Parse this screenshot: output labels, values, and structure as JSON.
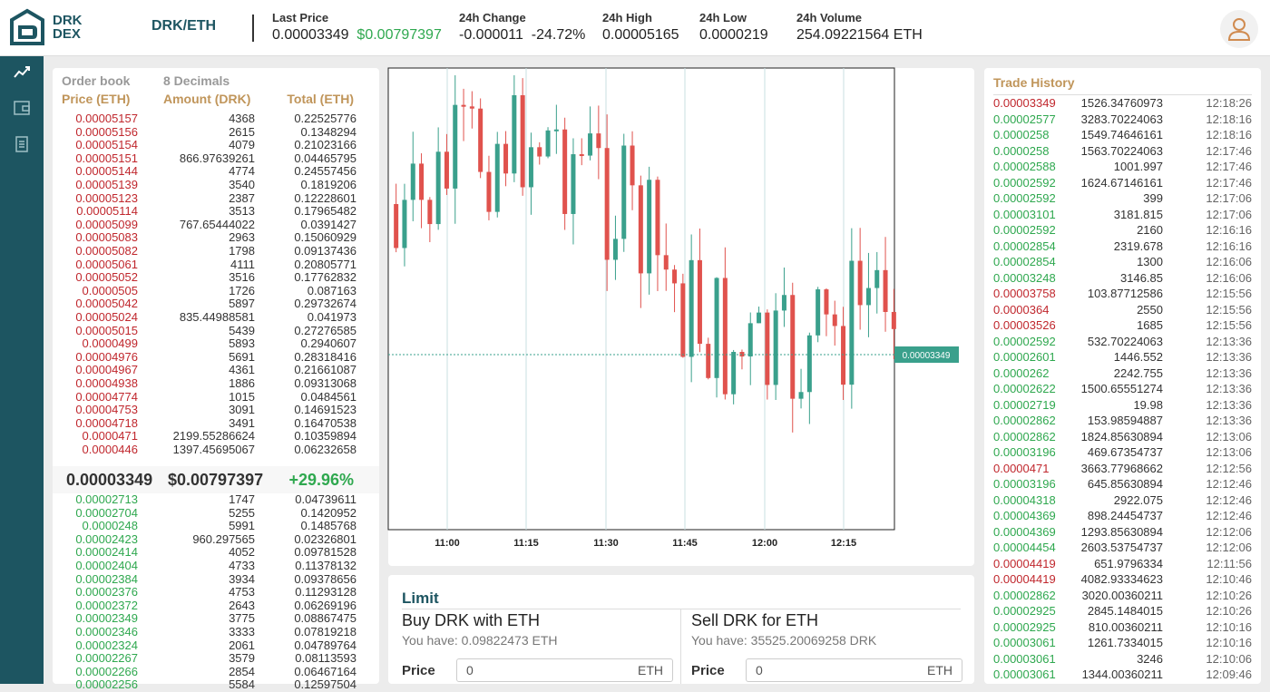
{
  "header": {
    "brand_line1": "DRK",
    "brand_line2": "DEX",
    "pair": "DRK/ETH",
    "last_price_label": "Last Price",
    "last_price": "0.00003349",
    "last_price_usd": "$0.00797397",
    "change_label": "24h Change",
    "change_abs": "-0.000011",
    "change_pct": "-24.72%",
    "high_label": "24h High",
    "high": "0.00005165",
    "low_label": "24h Low",
    "low": "0.0000219",
    "volume_label": "24h Volume",
    "volume": "254.09221564 ETH"
  },
  "sidebar": {
    "icons": [
      "chart-line-icon",
      "wallet-icon",
      "document-icon"
    ]
  },
  "orderbook": {
    "title": "Order book",
    "decimals": "8 Decimals",
    "col_price": "Price (ETH)",
    "col_amount": "Amount (DRK)",
    "col_total": "Total (ETH)",
    "asks": [
      [
        "0.00005157",
        "4368",
        "0.22525776"
      ],
      [
        "0.00005156",
        "2615",
        "0.1348294"
      ],
      [
        "0.00005154",
        "4079",
        "0.21023166"
      ],
      [
        "0.00005151",
        "866.97639261",
        "0.04465795"
      ],
      [
        "0.00005144",
        "4774",
        "0.24557456"
      ],
      [
        "0.00005139",
        "3540",
        "0.1819206"
      ],
      [
        "0.00005123",
        "2387",
        "0.12228601"
      ],
      [
        "0.00005114",
        "3513",
        "0.17965482"
      ],
      [
        "0.00005099",
        "767.65444022",
        "0.0391427"
      ],
      [
        "0.00005083",
        "2963",
        "0.15060929"
      ],
      [
        "0.00005082",
        "1798",
        "0.09137436"
      ],
      [
        "0.00005061",
        "4111",
        "0.20805771"
      ],
      [
        "0.00005052",
        "3516",
        "0.17762832"
      ],
      [
        "0.0000505",
        "1726",
        "0.087163"
      ],
      [
        "0.00005042",
        "5897",
        "0.29732674"
      ],
      [
        "0.00005024",
        "835.44988581",
        "0.041973"
      ],
      [
        "0.00005015",
        "5439",
        "0.27276585"
      ],
      [
        "0.0000499",
        "5893",
        "0.2940607"
      ],
      [
        "0.00004976",
        "5691",
        "0.28318416"
      ],
      [
        "0.00004967",
        "4361",
        "0.21661087"
      ],
      [
        "0.00004938",
        "1886",
        "0.09313068"
      ],
      [
        "0.00004774",
        "1015",
        "0.0484561"
      ],
      [
        "0.00004753",
        "3091",
        "0.14691523"
      ],
      [
        "0.00004718",
        "3491",
        "0.16470538"
      ],
      [
        "0.0000471",
        "2199.55286624",
        "0.10359894"
      ],
      [
        "0.0000446",
        "1397.45695067",
        "0.06232658"
      ]
    ],
    "mid_price": "0.00003349",
    "mid_usd": "$0.00797397",
    "mid_change": "+29.96%",
    "bids": [
      [
        "0.00002713",
        "1747",
        "0.04739611"
      ],
      [
        "0.00002704",
        "5255",
        "0.1420952"
      ],
      [
        "0.0000248",
        "5991",
        "0.1485768"
      ],
      [
        "0.00002423",
        "960.297565",
        "0.02326801"
      ],
      [
        "0.00002414",
        "4052",
        "0.09781528"
      ],
      [
        "0.00002404",
        "4733",
        "0.11378132"
      ],
      [
        "0.00002384",
        "3934",
        "0.09378656"
      ],
      [
        "0.00002376",
        "4753",
        "0.11293128"
      ],
      [
        "0.00002372",
        "2643",
        "0.06269196"
      ],
      [
        "0.00002349",
        "3775",
        "0.08867475"
      ],
      [
        "0.00002346",
        "3333",
        "0.07819218"
      ],
      [
        "0.00002324",
        "2061",
        "0.04789764"
      ],
      [
        "0.00002267",
        "3579",
        "0.08113593"
      ],
      [
        "0.00002266",
        "2854",
        "0.06467164"
      ],
      [
        "0.00002256",
        "5584",
        "0.12597504"
      ]
    ]
  },
  "chart": {
    "x_ticks": [
      "11:00",
      "11:15",
      "11:30",
      "11:45",
      "12:00",
      "12:15"
    ],
    "current_price_label": "0.00003349"
  },
  "limit": {
    "title": "Limit",
    "buy_title": "Buy DRK with ETH",
    "buy_have": "You have: 0.09822473 ETH",
    "buy_price_label": "Price",
    "buy_price_value": "0",
    "buy_unit": "ETH",
    "sell_title": "Sell DRK for ETH",
    "sell_have": "You have: 35525.20069258 DRK",
    "sell_price_label": "Price",
    "sell_price_value": "0",
    "sell_unit": "ETH"
  },
  "trade_history": {
    "title": "Trade History",
    "rows": [
      [
        "0.00003349",
        "1526.34760973",
        "12:18:26",
        "sell"
      ],
      [
        "0.00002577",
        "3283.70224063",
        "12:18:16",
        "buy"
      ],
      [
        "0.0000258",
        "1549.74646161",
        "12:18:16",
        "buy"
      ],
      [
        "0.0000258",
        "1563.70224063",
        "12:17:46",
        "buy"
      ],
      [
        "0.00002588",
        "1001.997",
        "12:17:46",
        "buy"
      ],
      [
        "0.00002592",
        "1624.67146161",
        "12:17:46",
        "buy"
      ],
      [
        "0.00002592",
        "399",
        "12:17:06",
        "buy"
      ],
      [
        "0.00003101",
        "3181.815",
        "12:17:06",
        "buy"
      ],
      [
        "0.00002592",
        "2160",
        "12:16:16",
        "buy"
      ],
      [
        "0.00002854",
        "2319.678",
        "12:16:16",
        "buy"
      ],
      [
        "0.00002854",
        "1300",
        "12:16:06",
        "buy"
      ],
      [
        "0.00003248",
        "3146.85",
        "12:16:06",
        "buy"
      ],
      [
        "0.00003758",
        "103.87712586",
        "12:15:56",
        "sell"
      ],
      [
        "0.0000364",
        "2550",
        "12:15:56",
        "sell"
      ],
      [
        "0.00003526",
        "1685",
        "12:15:56",
        "sell"
      ],
      [
        "0.00002592",
        "532.70224063",
        "12:13:36",
        "buy"
      ],
      [
        "0.00002601",
        "1446.552",
        "12:13:36",
        "buy"
      ],
      [
        "0.0000262",
        "2242.755",
        "12:13:36",
        "buy"
      ],
      [
        "0.00002622",
        "1500.65551274",
        "12:13:36",
        "buy"
      ],
      [
        "0.00002719",
        "19.98",
        "12:13:36",
        "buy"
      ],
      [
        "0.00002862",
        "153.98594887",
        "12:13:36",
        "buy"
      ],
      [
        "0.00002862",
        "1824.85630894",
        "12:13:06",
        "buy"
      ],
      [
        "0.00003196",
        "469.67354737",
        "12:13:06",
        "buy"
      ],
      [
        "0.0000471",
        "3663.77968662",
        "12:12:56",
        "sell"
      ],
      [
        "0.00003196",
        "645.85630894",
        "12:12:46",
        "buy"
      ],
      [
        "0.00004318",
        "2922.075",
        "12:12:46",
        "buy"
      ],
      [
        "0.00004369",
        "898.24454737",
        "12:12:46",
        "buy"
      ],
      [
        "0.00004369",
        "1293.85630894",
        "12:12:06",
        "buy"
      ],
      [
        "0.00004454",
        "2603.53754737",
        "12:12:06",
        "buy"
      ],
      [
        "0.00004419",
        "651.9796334",
        "12:11:56",
        "sell"
      ],
      [
        "0.00004419",
        "4082.93334623",
        "12:10:46",
        "sell"
      ],
      [
        "0.00002862",
        "3020.00360211",
        "12:10:26",
        "buy"
      ],
      [
        "0.00002925",
        "2845.1484015",
        "12:10:26",
        "buy"
      ],
      [
        "0.00002925",
        "810.00360211",
        "12:10:16",
        "buy"
      ],
      [
        "0.00003061",
        "1261.7334015",
        "12:10:16",
        "buy"
      ],
      [
        "0.00003061",
        "3246",
        "12:10:06",
        "buy"
      ],
      [
        "0.00003061",
        "1344.00360211",
        "12:09:46",
        "buy"
      ]
    ]
  },
  "colors": {
    "sell": "#c0272d",
    "buy": "#2fa84f",
    "brand": "#1d5561",
    "candle_up": "#3aa08c",
    "candle_down": "#e0524d"
  }
}
